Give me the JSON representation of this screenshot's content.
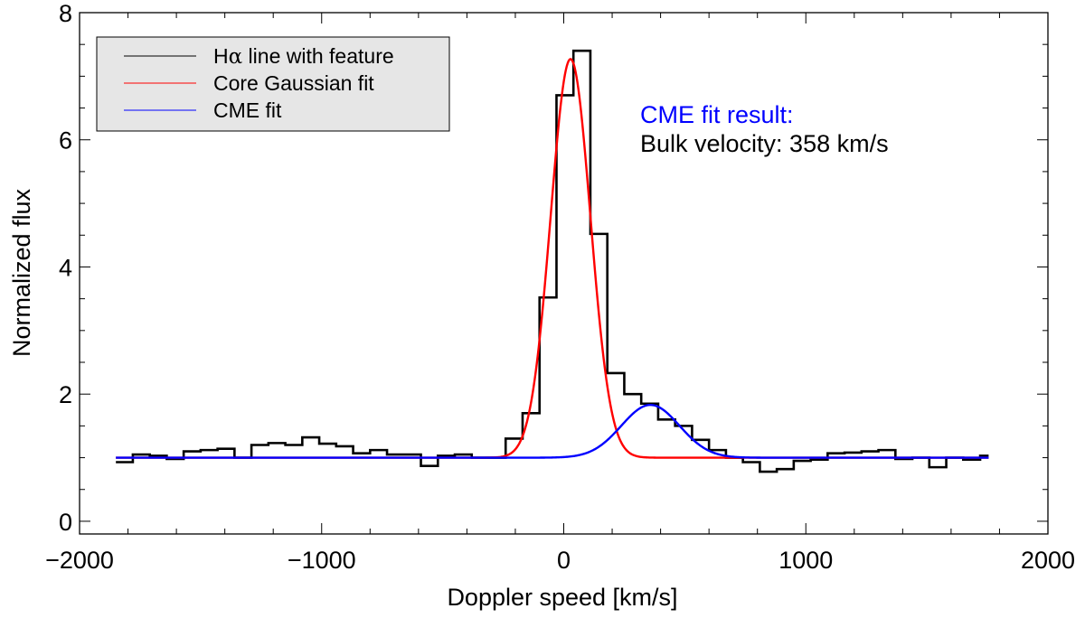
{
  "chart_data": {
    "type": "line",
    "title": "",
    "xlabel": "Doppler speed [km/s]",
    "ylabel": "Normalized flux",
    "xlim": [
      -2000,
      2000
    ],
    "ylim": [
      -0.2,
      8
    ],
    "xticks": [
      -2000,
      -1000,
      0,
      1000,
      2000
    ],
    "xtick_labels": [
      "−2000",
      "−1000",
      "0",
      "1000",
      "2000"
    ],
    "yticks": [
      0,
      2,
      4,
      6,
      8
    ],
    "ytick_labels": [
      "0",
      "2",
      "4",
      "6",
      "8"
    ],
    "grid": false,
    "legend": {
      "placement": "top-left",
      "entries": [
        {
          "prefix": "H",
          "greek": "α",
          "suffix": " line with feature",
          "label": "Hα line with feature",
          "color": "#000000"
        },
        {
          "label": "Core Gaussian fit",
          "color": "#ff0000"
        },
        {
          "label": "CME fit",
          "color": "#0000ff"
        }
      ]
    },
    "annotations": {
      "title": "CME fit result:",
      "title_color": "#0000ff",
      "text": "Bulk velocity: 358 km/s"
    },
    "series": [
      {
        "name": "Hα line with feature",
        "style": "histogram",
        "color": "#000000",
        "x": [
          -1850,
          -1780,
          -1710,
          -1640,
          -1570,
          -1500,
          -1430,
          -1360,
          -1290,
          -1220,
          -1150,
          -1080,
          -1010,
          -940,
          -870,
          -800,
          -730,
          -660,
          -590,
          -520,
          -450,
          -380,
          -310,
          -240,
          -170,
          -100,
          -30,
          40,
          110,
          180,
          250,
          320,
          390,
          460,
          530,
          600,
          670,
          740,
          810,
          880,
          950,
          1020,
          1090,
          1160,
          1230,
          1300,
          1370,
          1440,
          1510,
          1580,
          1650,
          1720
        ],
        "y": [
          0.93,
          1.05,
          1.03,
          0.98,
          1.1,
          1.12,
          1.14,
          1.0,
          1.2,
          1.23,
          1.2,
          1.32,
          1.22,
          1.18,
          1.07,
          1.12,
          1.05,
          1.05,
          0.87,
          1.03,
          1.05,
          1.0,
          1.0,
          1.3,
          1.7,
          3.52,
          6.7,
          7.4,
          4.52,
          2.33,
          2.0,
          1.85,
          1.6,
          1.5,
          1.28,
          1.12,
          1.0,
          0.93,
          0.78,
          0.82,
          0.95,
          0.97,
          1.07,
          1.08,
          1.1,
          1.12,
          0.98,
          1.0,
          0.85,
          1.0,
          0.97,
          1.03
        ],
        "end_x": 1755
      },
      {
        "name": "Core Gaussian fit",
        "style": "gaussian",
        "color": "#ff0000",
        "baseline": 1.0,
        "amplitude": 6.27,
        "center": 28,
        "sigma": 82,
        "x_range": [
          -1850,
          1755
        ]
      },
      {
        "name": "CME fit",
        "style": "gaussian",
        "color": "#0000ff",
        "baseline": 1.0,
        "amplitude": 0.83,
        "center": 358,
        "sigma": 120,
        "x_range": [
          -1850,
          1755
        ]
      }
    ]
  }
}
